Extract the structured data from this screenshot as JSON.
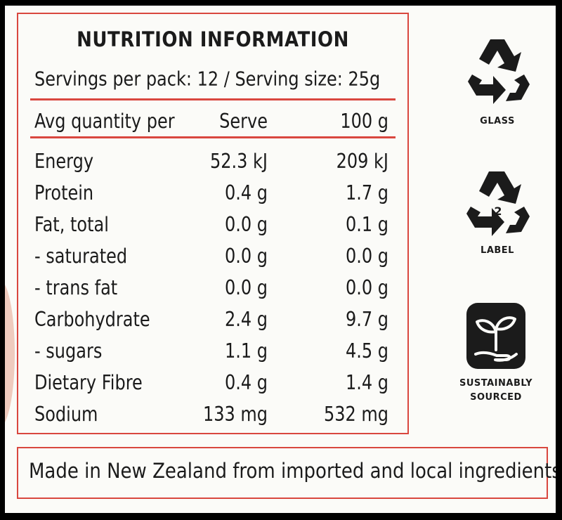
{
  "panel": {
    "title": "NUTRITION INFORMATION",
    "servings": "Servings per pack: 12 / Serving size: 25g",
    "header": [
      "Avg quantity per",
      "Serve",
      "100 g"
    ],
    "rows": [
      {
        "name": "Energy",
        "serve": "52.3 kJ",
        "per100": "209 kJ"
      },
      {
        "name": "Protein",
        "serve": "0.4 g",
        "per100": "1.7 g"
      },
      {
        "name": "Fat, total",
        "serve": "0.0 g",
        "per100": "0.1 g"
      },
      {
        "name": "- saturated",
        "serve": "0.0 g",
        "per100": "0.0 g"
      },
      {
        "name": "- trans fat",
        "serve": "0.0 g",
        "per100": "0.0 g"
      },
      {
        "name": "Carbohydrate",
        "serve": "2.4 g",
        "per100": "9.7 g"
      },
      {
        "name": "- sugars",
        "serve": "1.1 g",
        "per100": "4.5 g"
      },
      {
        "name": "Dietary Fibre",
        "serve": "0.4 g",
        "per100": "1.4 g"
      },
      {
        "name": "Sodium",
        "serve": "133 mg",
        "per100": "532 mg"
      }
    ]
  },
  "origin": "Made in New Zealand from imported and local ingredients",
  "badges": {
    "glass": {
      "label": "GLASS",
      "icon": "recycle-icon"
    },
    "label": {
      "label": "LABEL",
      "number": "2",
      "icon": "recycle-2-icon"
    },
    "sourced": {
      "line1": "SUSTAINABLY",
      "line2": "SOURCED",
      "icon": "plant-hand-icon"
    }
  },
  "colors": {
    "accent": "#d9473f",
    "text": "#1b1b1b",
    "background": "#fbfbf8"
  }
}
